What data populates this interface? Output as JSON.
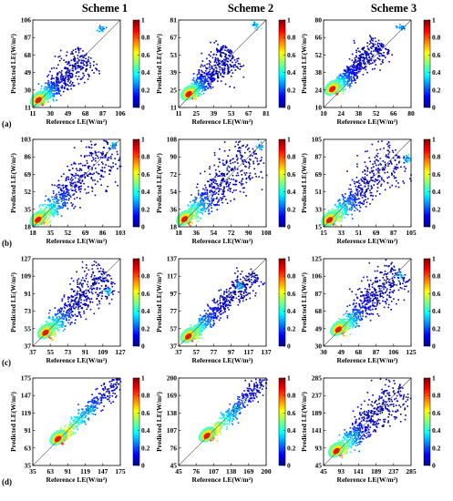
{
  "column_titles": [
    "Scheme 1",
    "Scheme 2",
    "Scheme 3"
  ],
  "row_labels": [
    "(a)",
    "(b)",
    "(c)",
    "(d)"
  ],
  "chart_data": [
    {
      "id": "a1",
      "type": "heatmap",
      "xlabel": "Reference LE(W/m²)",
      "ylabel": "Predicted LE(W/m²)",
      "ticks": [
        11,
        30,
        49,
        68,
        87,
        106
      ],
      "range": [
        11,
        106
      ],
      "colorbar_ticks": [
        "0",
        "0.2",
        "0.4",
        "0.6",
        "0.8",
        "1"
      ],
      "colorbar_range": [
        0,
        1
      ],
      "one_to_one_line": true,
      "density": {
        "center": [
          17,
          18
        ],
        "spread": [
          0.55,
          0.45
        ],
        "outlier": [
          85,
          97
        ]
      }
    },
    {
      "id": "a2",
      "type": "heatmap",
      "xlabel": "Reference LE(W/m²)",
      "ylabel": "Predicted LE(W/m²)",
      "ticks": [
        11,
        25,
        39,
        53,
        67,
        81
      ],
      "range": [
        11,
        81
      ],
      "colorbar_ticks": [
        "0",
        "0.2",
        "0.4",
        "0.6",
        "0.8",
        "1"
      ],
      "colorbar_range": [
        0,
        1
      ],
      "one_to_one_line": true,
      "density": {
        "center": [
          19,
          21
        ],
        "spread": [
          0.5,
          0.45
        ],
        "outlier": [
          72,
          77
        ]
      }
    },
    {
      "id": "a3",
      "type": "heatmap",
      "xlabel": "Reference LE(W/m²)",
      "ylabel": "Predicted LE(W/m²)",
      "ticks": [
        10,
        24,
        38,
        52,
        66,
        80
      ],
      "range": [
        10,
        80
      ],
      "colorbar_ticks": [
        "0",
        "0.2",
        "0.4",
        "0.6",
        "0.8",
        "1"
      ],
      "colorbar_range": [
        0,
        1
      ],
      "one_to_one_line": true,
      "density": {
        "center": [
          17,
          24
        ],
        "spread": [
          0.55,
          0.35
        ],
        "outlier": [
          72,
          74
        ]
      }
    },
    {
      "id": "b1",
      "type": "heatmap",
      "xlabel": "Reference LE(W/m²)",
      "ylabel": "Predicted LE(W/m²)",
      "ticks": [
        18,
        35,
        52,
        69,
        86,
        103
      ],
      "range": [
        18,
        103
      ],
      "colorbar_ticks": [
        "0",
        "0.2",
        "0.4",
        "0.6",
        "0.8",
        "1"
      ],
      "colorbar_range": [
        0,
        1
      ],
      "one_to_one_line": true,
      "density": {
        "center": [
          23,
          24
        ],
        "spread": [
          0.85,
          0.75
        ],
        "outlier": [
          96,
          98
        ]
      }
    },
    {
      "id": "b2",
      "type": "heatmap",
      "xlabel": "Reference LE(W/m²)",
      "ylabel": "Predicted LE(W/m²)",
      "ticks": [
        18,
        36,
        54,
        72,
        90,
        108
      ],
      "range": [
        18,
        108
      ],
      "colorbar_ticks": [
        "0",
        "0.2",
        "0.4",
        "0.6",
        "0.8",
        "1"
      ],
      "colorbar_range": [
        0,
        1
      ],
      "one_to_one_line": true,
      "density": {
        "center": [
          24,
          25
        ],
        "spread": [
          0.8,
          0.75
        ],
        "outlier": [
          101,
          102
        ]
      }
    },
    {
      "id": "b3",
      "type": "heatmap",
      "xlabel": "Reference LE(W/m²)",
      "ylabel": "Predicted LE(W/m²)",
      "ticks": [
        15,
        33,
        51,
        69,
        87,
        105
      ],
      "range": [
        15,
        105
      ],
      "colorbar_ticks": [
        "0",
        "0.2",
        "0.4",
        "0.6",
        "0.8",
        "1"
      ],
      "colorbar_range": [
        0,
        1
      ],
      "one_to_one_line": true,
      "density": {
        "center": [
          21,
          21
        ],
        "spread": [
          0.8,
          0.7
        ],
        "outlier": [
          101,
          86
        ]
      }
    },
    {
      "id": "c1",
      "type": "heatmap",
      "xlabel": "Reference LE(W/m²)",
      "ylabel": "Predicted LE(W/m²)",
      "ticks": [
        37,
        55,
        73,
        91,
        109,
        127
      ],
      "range": [
        37,
        127
      ],
      "colorbar_ticks": [
        "0",
        "0.2",
        "0.4",
        "0.6",
        "0.8",
        "1"
      ],
      "colorbar_range": [
        0,
        1
      ],
      "one_to_one_line": true,
      "density": {
        "center": [
          50,
          50
        ],
        "spread": [
          0.7,
          0.55
        ],
        "outlier": [
          113,
          95
        ]
      }
    },
    {
      "id": "c2",
      "type": "heatmap",
      "xlabel": "Reference LE(W/m²)",
      "ylabel": "Predicted LE(W/m²)",
      "ticks": [
        37,
        57,
        77,
        97,
        117,
        137
      ],
      "range": [
        37,
        137
      ],
      "colorbar_ticks": [
        "0",
        "0.2",
        "0.4",
        "0.6",
        "0.8",
        "1"
      ],
      "colorbar_range": [
        0,
        1
      ],
      "one_to_one_line": true,
      "density": {
        "center": [
          48,
          47
        ],
        "spread": [
          0.75,
          0.3
        ],
        "outlier": [
          105,
          107
        ]
      }
    },
    {
      "id": "c3",
      "type": "heatmap",
      "xlabel": "Reference LE(W/m²)",
      "ylabel": "Predicted LE(W/m²)",
      "ticks": [
        30,
        49,
        68,
        87,
        106,
        125
      ],
      "range": [
        30,
        125
      ],
      "colorbar_ticks": [
        "0",
        "0.2",
        "0.4",
        "0.6",
        "0.8",
        "1"
      ],
      "colorbar_range": [
        0,
        1
      ],
      "one_to_one_line": true,
      "density": {
        "center": [
          46,
          47
        ],
        "spread": [
          0.7,
          0.6
        ],
        "outlier": [
          112,
          108
        ]
      }
    },
    {
      "id": "d1",
      "type": "heatmap",
      "xlabel": "Reference LE(W/m²)",
      "ylabel": "Predicted LE(W/m²)",
      "ticks": [
        35,
        63,
        91,
        119,
        147,
        175
      ],
      "range": [
        35,
        175
      ],
      "colorbar_ticks": [
        "0",
        "0.2",
        "0.4",
        "0.6",
        "0.8",
        "1"
      ],
      "colorbar_range": [
        0,
        1
      ],
      "one_to_one_line": true,
      "density": {
        "center": [
          75,
          76
        ],
        "spread": [
          1.3,
          0.25
        ],
        "outlier": [
          128,
          126
        ]
      }
    },
    {
      "id": "d2",
      "type": "heatmap",
      "xlabel": "Reference LE(W/m²)",
      "ylabel": "Predicted LE(W/m²)",
      "ticks": [
        45,
        76,
        107,
        138,
        169,
        200
      ],
      "range": [
        45,
        200
      ],
      "colorbar_ticks": [
        "0",
        "0.2",
        "0.4",
        "0.6",
        "0.8",
        "1"
      ],
      "colorbar_range": [
        0,
        1
      ],
      "one_to_one_line": true,
      "density": {
        "center": [
          95,
          96
        ],
        "spread": [
          1.2,
          0.25
        ],
        "outlier": [
          145,
          146
        ]
      }
    },
    {
      "id": "d3",
      "type": "heatmap",
      "xlabel": "Reference LE(W/m²)",
      "ylabel": "Predicted LE(W/m²)",
      "ticks": [
        45,
        93,
        141,
        189,
        237,
        285
      ],
      "range": [
        45,
        285
      ],
      "colorbar_ticks": [
        "0",
        "0.2",
        "0.4",
        "0.6",
        "0.8",
        "1"
      ],
      "colorbar_range": [
        0,
        1
      ],
      "one_to_one_line": true,
      "density": {
        "center": [
          80,
          82
        ],
        "spread": [
          0.75,
          0.6
        ],
        "outlier": [
          133,
          133
        ]
      }
    }
  ]
}
